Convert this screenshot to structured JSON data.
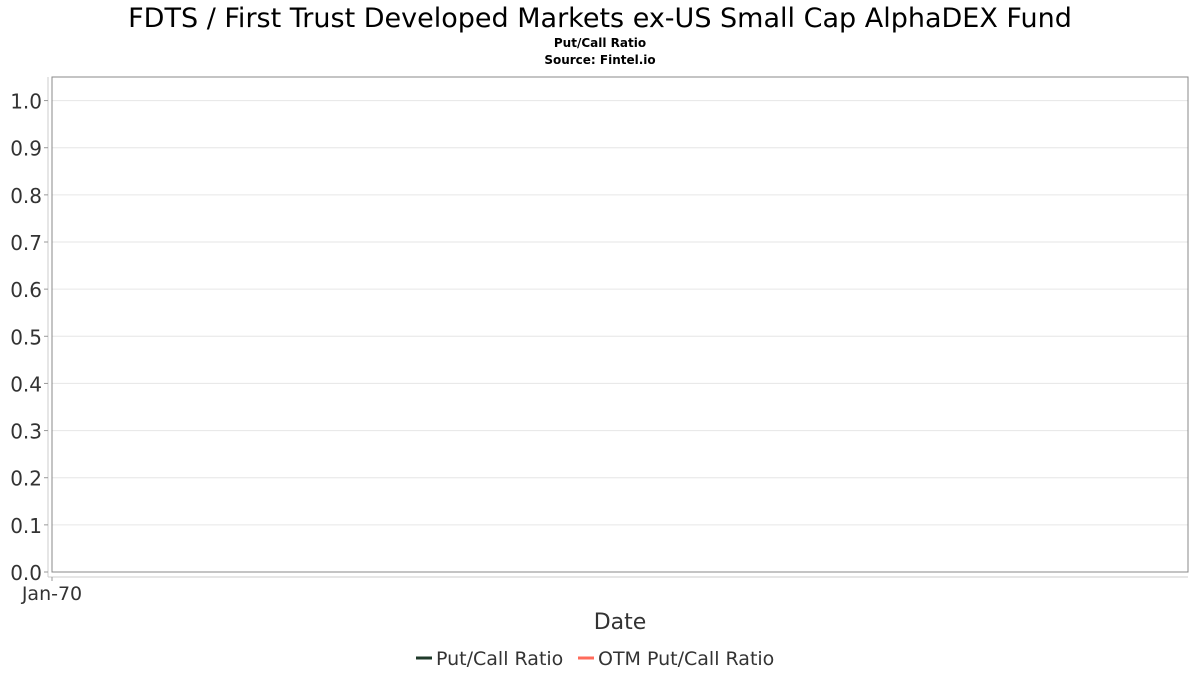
{
  "chart_data": {
    "type": "line",
    "title": "FDTS / First Trust Developed Markets ex-US Small Cap AlphaDEX Fund",
    "subtitle": "Put/Call Ratio",
    "source": "Source: Fintel.io",
    "xlabel": "Date",
    "ylabel": "",
    "x_ticks": [
      "Jan-70"
    ],
    "y_ticks": [
      "0.0",
      "0.1",
      "0.2",
      "0.3",
      "0.4",
      "0.5",
      "0.6",
      "0.7",
      "0.8",
      "0.9",
      "1.0"
    ],
    "ylim": [
      0,
      1.05
    ],
    "grid": true,
    "legend_position": "bottom",
    "series": [
      {
        "name": "Put/Call Ratio",
        "color": "#1f3a2a",
        "values": []
      },
      {
        "name": "OTM Put/Call Ratio",
        "color": "#ff6b5b",
        "values": []
      }
    ]
  }
}
